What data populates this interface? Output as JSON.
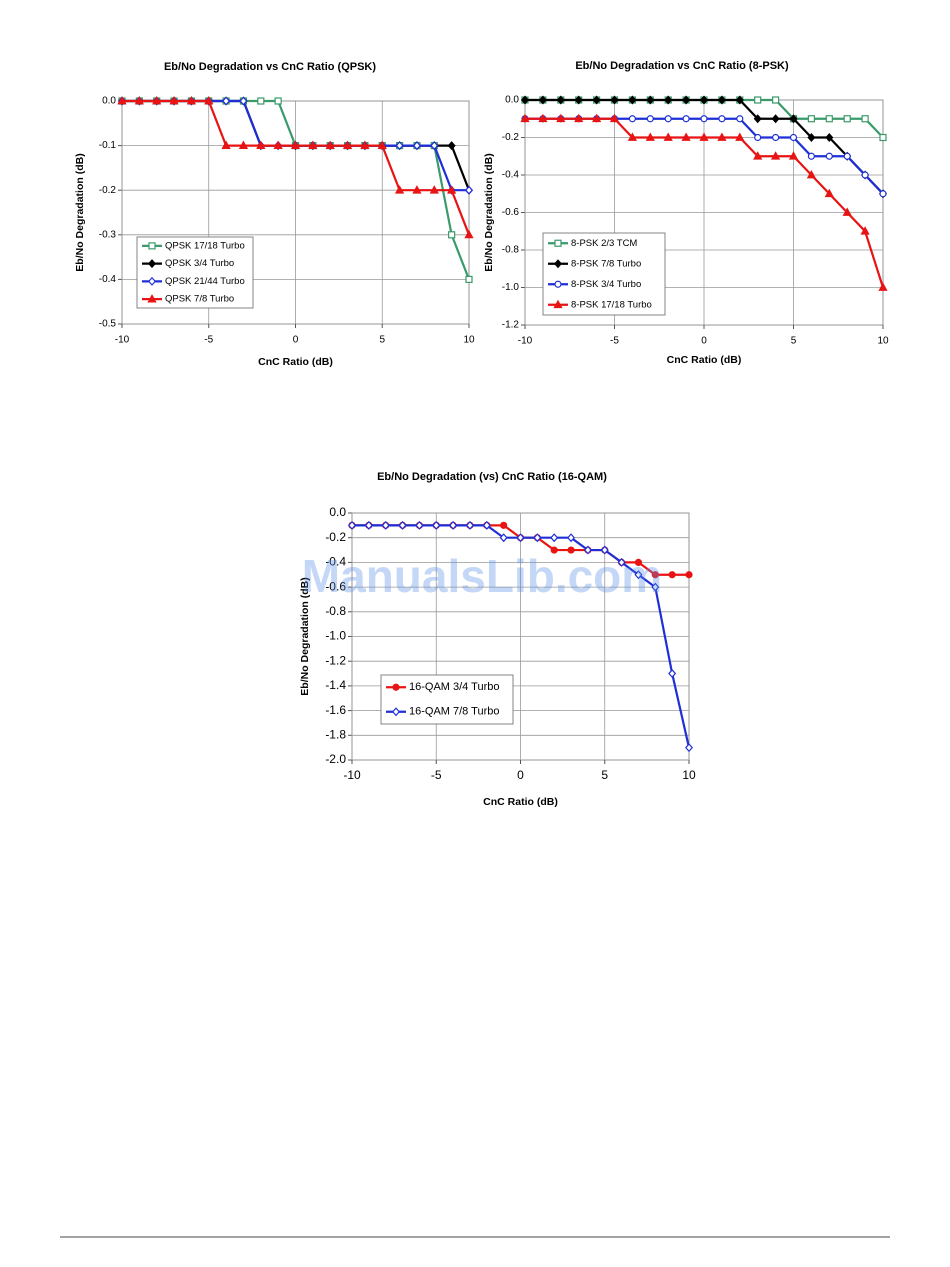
{
  "watermark": "ManualsLib.com",
  "chart_data": [
    {
      "type": "line",
      "title": "Eb/No Degradation vs CnC Ratio (QPSK)",
      "x_label": "CnC Ratio (dB)",
      "y_label": "Eb/No Degradation (dB)",
      "x": [
        -10,
        -9,
        -8,
        -7,
        -6,
        -5,
        -4,
        -3,
        -2,
        -1,
        0,
        1,
        2,
        3,
        4,
        5,
        6,
        7,
        8,
        9,
        10
      ],
      "xlim": [
        -10,
        10
      ],
      "xticks": [
        -10,
        -5,
        0,
        5,
        10
      ],
      "ylim": [
        -0.5,
        0
      ],
      "yticks": [
        {
          "value": 0,
          "label": "0.0"
        },
        -0.1,
        -0.2,
        -0.3,
        -0.4,
        -0.5
      ],
      "grid": true,
      "legend": "lower left",
      "series": [
        {
          "name": "QPSK 17/18 Turbo",
          "color": "#3a9a6a",
          "marker": "square",
          "filled": false,
          "values": [
            0,
            0,
            0,
            0,
            0,
            0,
            0,
            0,
            0,
            0,
            -0.1,
            -0.1,
            -0.1,
            -0.1,
            -0.1,
            -0.1,
            -0.1,
            -0.1,
            -0.1,
            -0.3,
            -0.4
          ]
        },
        {
          "name": "QPSK 3/4 Turbo",
          "color": "#000000",
          "marker": "diamond",
          "filled": true,
          "values": [
            0,
            0,
            0,
            0,
            0,
            0,
            0,
            0,
            -0.1,
            -0.1,
            -0.1,
            -0.1,
            -0.1,
            -0.1,
            -0.1,
            -0.1,
            -0.1,
            -0.1,
            -0.1,
            -0.1,
            -0.2
          ]
        },
        {
          "name": "QPSK 21/44 Turbo",
          "color": "#1f2fd8",
          "marker": "diamond",
          "filled": false,
          "values": [
            0,
            0,
            0,
            0,
            0,
            0,
            0,
            0,
            -0.1,
            -0.1,
            -0.1,
            -0.1,
            -0.1,
            -0.1,
            -0.1,
            -0.1,
            -0.1,
            -0.1,
            -0.1,
            -0.2,
            -0.2
          ]
        },
        {
          "name": "QPSK 7/8 Turbo",
          "color": "#e81414",
          "marker": "triangle",
          "filled": true,
          "values": [
            0,
            0,
            0,
            0,
            0,
            0,
            -0.1,
            -0.1,
            -0.1,
            -0.1,
            -0.1,
            -0.1,
            -0.1,
            -0.1,
            -0.1,
            -0.1,
            -0.2,
            -0.2,
            -0.2,
            -0.2,
            -0.3
          ]
        }
      ]
    },
    {
      "type": "line",
      "title": "Eb/No Degradation vs CnC Ratio (8-PSK)",
      "x_label": "CnC Ratio (dB)",
      "y_label": "Eb/No Degradation (dB)",
      "x": [
        -10,
        -9,
        -8,
        -7,
        -6,
        -5,
        -4,
        -3,
        -2,
        -1,
        0,
        1,
        2,
        3,
        4,
        5,
        6,
        7,
        8,
        9,
        10
      ],
      "xlim": [
        -10,
        10
      ],
      "xticks": [
        -10,
        -5,
        0,
        5,
        10
      ],
      "ylim": [
        -1.2,
        0
      ],
      "yticks": [
        {
          "value": 0,
          "label": "0.0"
        },
        -0.2,
        -0.4,
        -0.6,
        -0.8,
        {
          "value": -1,
          "label": "-1.0"
        },
        -1.2
      ],
      "grid": true,
      "legend": "lower left",
      "series": [
        {
          "name": "8-PSK 2/3 TCM",
          "color": "#3a9a6a",
          "marker": "square",
          "filled": false,
          "values": [
            0,
            0,
            0,
            0,
            0,
            0,
            0,
            0,
            0,
            0,
            0,
            0,
            0,
            0,
            0,
            -0.1,
            -0.1,
            -0.1,
            -0.1,
            -0.1,
            -0.2
          ]
        },
        {
          "name": "8-PSK 7/8 Turbo",
          "color": "#000000",
          "marker": "diamond",
          "filled": true,
          "values": [
            0,
            0,
            0,
            0,
            0,
            0,
            0,
            0,
            0,
            0,
            0,
            0,
            0,
            -0.1,
            -0.1,
            -0.1,
            -0.2,
            -0.2,
            -0.3,
            -0.4,
            -0.5
          ]
        },
        {
          "name": "8-PSK 3/4 Turbo",
          "color": "#1f2fd8",
          "marker": "circle",
          "filled": false,
          "values": [
            -0.1,
            -0.1,
            -0.1,
            -0.1,
            -0.1,
            -0.1,
            -0.1,
            -0.1,
            -0.1,
            -0.1,
            -0.1,
            -0.1,
            -0.1,
            -0.2,
            -0.2,
            -0.2,
            -0.3,
            -0.3,
            -0.3,
            -0.4,
            -0.5
          ]
        },
        {
          "name": "8-PSK 17/18 Turbo",
          "color": "#e81414",
          "marker": "triangle",
          "filled": true,
          "values": [
            -0.1,
            -0.1,
            -0.1,
            -0.1,
            -0.1,
            -0.1,
            -0.2,
            -0.2,
            -0.2,
            -0.2,
            -0.2,
            -0.2,
            -0.2,
            -0.3,
            -0.3,
            -0.3,
            -0.4,
            -0.5,
            -0.6,
            -0.7,
            -1.0
          ]
        }
      ]
    },
    {
      "type": "line",
      "title": "Eb/No Degradation (vs) CnC Ratio (16-QAM)",
      "x_label": "CnC Ratio (dB)",
      "y_label": "Eb/No Degradation (dB)",
      "x": [
        -10,
        -9,
        -8,
        -7,
        -6,
        -5,
        -4,
        -3,
        -2,
        -1,
        0,
        1,
        2,
        3,
        4,
        5,
        6,
        7,
        8,
        9,
        10
      ],
      "xlim": [
        -10,
        10
      ],
      "xticks": [
        -10,
        -5,
        0,
        5,
        10
      ],
      "ylim": [
        -2,
        0
      ],
      "yticks": [
        {
          "value": 0,
          "label": "0.0"
        },
        -0.2,
        -0.4,
        -0.6,
        -0.8,
        {
          "value": -1,
          "label": "-1.0"
        },
        -1.2,
        -1.4,
        -1.6,
        -1.8,
        {
          "value": -2,
          "label": "-2.0"
        }
      ],
      "grid": true,
      "legend": "lower left",
      "series": [
        {
          "name": "16-QAM 3/4 Turbo",
          "color": "#e81414",
          "marker": "circle",
          "filled": true,
          "values": [
            -0.1,
            -0.1,
            -0.1,
            -0.1,
            -0.1,
            -0.1,
            -0.1,
            -0.1,
            -0.1,
            -0.1,
            -0.2,
            -0.2,
            -0.3,
            -0.3,
            -0.3,
            -0.3,
            -0.4,
            -0.4,
            -0.5,
            -0.5,
            -0.5
          ]
        },
        {
          "name": "16-QAM 7/8 Turbo",
          "color": "#1f2fd8",
          "marker": "diamond",
          "filled": false,
          "values": [
            -0.1,
            -0.1,
            -0.1,
            -0.1,
            -0.1,
            -0.1,
            -0.1,
            -0.1,
            -0.1,
            -0.2,
            -0.2,
            -0.2,
            -0.2,
            -0.2,
            -0.3,
            -0.3,
            -0.4,
            -0.5,
            -0.6,
            -1.3,
            -1.9
          ]
        }
      ]
    }
  ]
}
